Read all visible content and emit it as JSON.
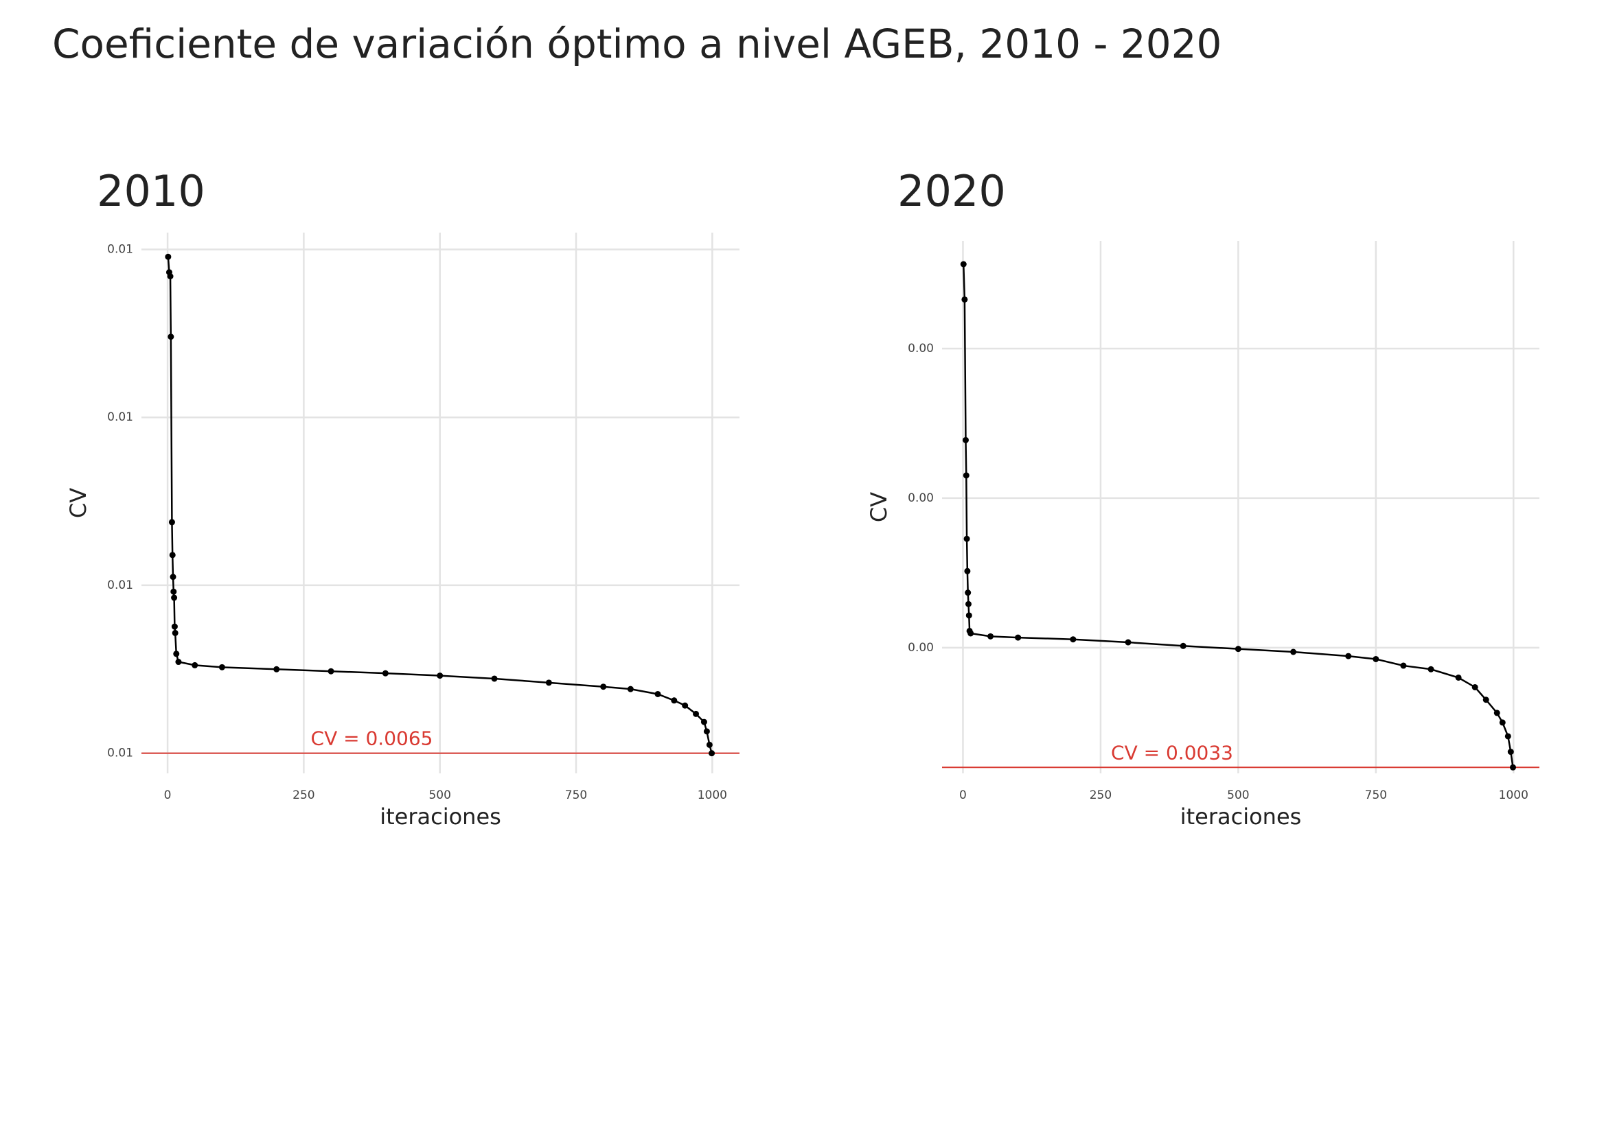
{
  "title": "Coeficiente de variación óptimo a nivel AGEB, 2010 - 2020",
  "chart_data": [
    {
      "type": "line",
      "title": "2010",
      "x_label": "iteraciones",
      "y_label": "CV",
      "color": "#000000",
      "grid": true,
      "x": [
        1,
        3,
        5,
        6,
        8,
        9,
        10,
        11,
        12,
        13,
        14,
        16,
        20,
        50,
        100,
        200,
        300,
        400,
        500,
        600,
        700,
        800,
        850,
        900,
        930,
        950,
        970,
        985,
        990,
        995,
        999
      ],
      "values": [
        0.007978,
        0.007932,
        0.00792,
        0.00774,
        0.007188,
        0.00709,
        0.007025,
        0.006981,
        0.006963,
        0.006877,
        0.006858,
        0.006796,
        0.006772,
        0.006762,
        0.006756,
        0.00675,
        0.006744,
        0.006738,
        0.006731,
        0.006722,
        0.00671,
        0.006698,
        0.006691,
        0.006676,
        0.006657,
        0.006642,
        0.006617,
        0.006593,
        0.006565,
        0.006525,
        0.0065
      ],
      "xlim": [
        -48,
        1050
      ],
      "xticks": [
        0,
        250,
        500,
        750,
        1000
      ],
      "ylim": [
        0.00644,
        0.00805
      ],
      "yticks": [
        {
          "value": 0.0065,
          "label": "0.01"
        },
        {
          "value": 0.007,
          "label": "0.01"
        },
        {
          "value": 0.0075,
          "label": "0.01"
        },
        {
          "value": 0.008,
          "label": "0.01"
        }
      ],
      "hline": 0.0065,
      "hline_label": "CV = 0.0065",
      "hline_color": "#d93a32"
    },
    {
      "type": "line",
      "title": "2020",
      "x_label": "iteraciones",
      "y_label": "CV",
      "color": "#000000",
      "grid": true,
      "x": [
        1,
        3,
        5,
        6,
        7,
        8,
        9,
        10,
        11,
        12,
        14,
        50,
        100,
        200,
        300,
        400,
        500,
        600,
        700,
        750,
        800,
        850,
        900,
        930,
        950,
        970,
        980,
        990,
        995,
        999
      ],
      "values": [
        0.004141,
        0.004082,
        0.003847,
        0.003788,
        0.003682,
        0.003628,
        0.003592,
        0.003573,
        0.003554,
        0.003528,
        0.003524,
        0.003519,
        0.003517,
        0.003514,
        0.003509,
        0.003503,
        0.003498,
        0.003493,
        0.003486,
        0.003481,
        0.00347,
        0.003464,
        0.00345,
        0.003434,
        0.003413,
        0.003391,
        0.003375,
        0.003352,
        0.003326,
        0.0033
      ],
      "xlim": [
        -38,
        1047
      ],
      "xticks": [
        0,
        250,
        500,
        750,
        1000
      ],
      "ylim": [
        0.00329,
        0.00418
      ],
      "yticks": [
        {
          "value": 0.0035,
          "label": "0.00"
        },
        {
          "value": 0.00375,
          "label": "0.00"
        },
        {
          "value": 0.004,
          "label": "0.00"
        }
      ],
      "hline": 0.0033,
      "hline_label": "CV = 0.0033",
      "hline_color": "#d93a32"
    }
  ]
}
